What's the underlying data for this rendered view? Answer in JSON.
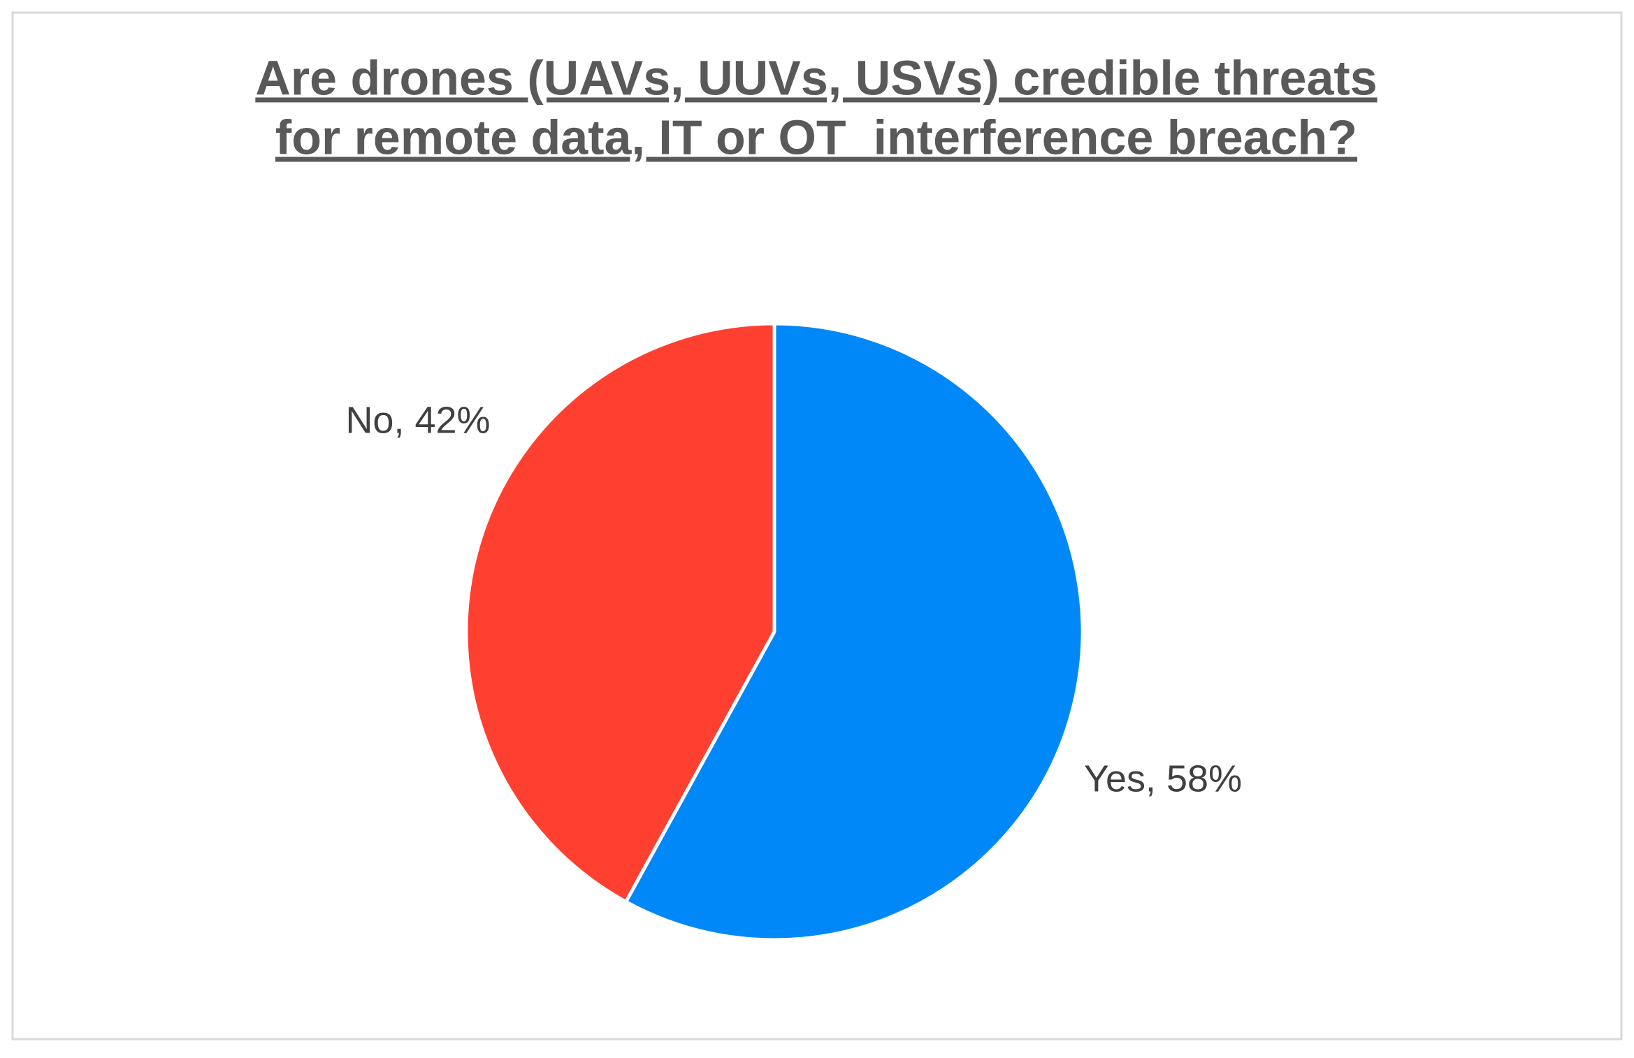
{
  "chart_data": {
    "type": "pie",
    "title": [
      "Are drones (UAVs, UUVs, USVs) credible threats",
      "for remote data, IT or OT  interference breach?"
    ],
    "values": [
      58,
      42
    ],
    "value_labels": [
      "Yes, 58%",
      "No, 42%"
    ],
    "colors": [
      "#0088f8",
      "#ff3f30"
    ]
  }
}
